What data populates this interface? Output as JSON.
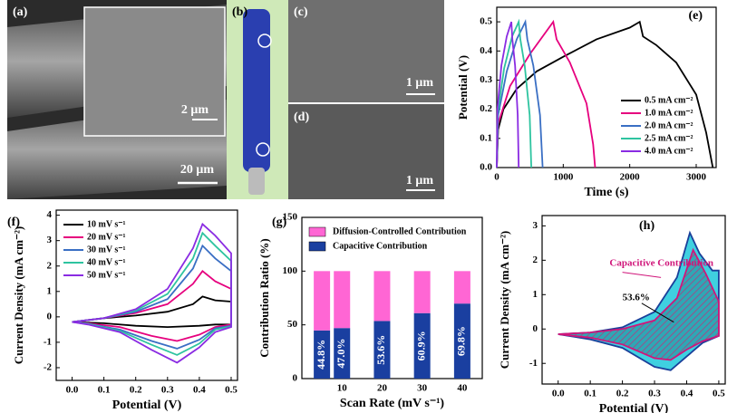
{
  "images": {
    "a": {
      "label": "(a)",
      "scale": "20 μm",
      "inset_scale": "2 μm"
    },
    "b": {
      "label": "(b)"
    },
    "c": {
      "label": "(c)",
      "scale": "1 μm"
    },
    "d": {
      "label": "(d)",
      "scale": "1 μm"
    }
  },
  "chart_data": [
    {
      "type": "line",
      "panel_label": "(e)",
      "x_label": "Time (s)",
      "y_label": "Potential (V)",
      "xlim": [
        0,
        3300
      ],
      "xticks": [
        0,
        1000,
        2000,
        3000
      ],
      "ylim": [
        0,
        0.55
      ],
      "yticks": [
        {
          "value": 0,
          "label": "0.0"
        },
        0.1,
        0.2,
        0.3,
        0.4,
        0.5
      ],
      "legend": "lower right",
      "series": [
        {
          "name": "0.5 mA cm⁻²",
          "color": "#000000",
          "x": [
            0,
            20,
            100,
            300,
            600,
            1000,
            1500,
            2000,
            2150,
            2200,
            2400,
            2700,
            3000,
            3150,
            3250
          ],
          "values": [
            0,
            0.13,
            0.2,
            0.27,
            0.33,
            0.38,
            0.44,
            0.48,
            0.5,
            0.45,
            0.42,
            0.36,
            0.25,
            0.12,
            0
          ]
        },
        {
          "name": "1.0 mA cm⁻²",
          "color": "#e6007e",
          "x": [
            0,
            20,
            200,
            500,
            850,
            900,
            1100,
            1350,
            1450,
            1480
          ],
          "values": [
            0,
            0.15,
            0.28,
            0.39,
            0.5,
            0.44,
            0.36,
            0.22,
            0.08,
            0
          ]
        },
        {
          "name": "2.0 mA cm⁻²",
          "color": "#3a6fc4",
          "x": [
            0,
            20,
            150,
            300,
            430,
            460,
            550,
            650,
            690
          ],
          "values": [
            0,
            0.18,
            0.33,
            0.44,
            0.5,
            0.44,
            0.35,
            0.18,
            0
          ]
        },
        {
          "name": "2.5 mA cm⁻²",
          "color": "#2ec4a0",
          "x": [
            0,
            15,
            110,
            230,
            330,
            355,
            420,
            495,
            520
          ],
          "values": [
            0,
            0.19,
            0.34,
            0.45,
            0.5,
            0.44,
            0.35,
            0.18,
            0
          ]
        },
        {
          "name": "4.0 mA cm⁻²",
          "color": "#8a2be2",
          "x": [
            0,
            10,
            70,
            150,
            220,
            235,
            275,
            315,
            330
          ],
          "values": [
            0,
            0.2,
            0.35,
            0.45,
            0.5,
            0.44,
            0.35,
            0.18,
            0
          ]
        }
      ]
    },
    {
      "type": "line",
      "panel_label": "(f)",
      "x_label": "Potential (V)",
      "y_label": "Current Density (mA cm⁻²)",
      "xlim": [
        -0.05,
        0.52
      ],
      "xticks": [
        {
          "value": 0,
          "label": "0.0"
        },
        0.1,
        0.2,
        0.3,
        0.4,
        0.5
      ],
      "ylim": [
        -2.5,
        4.2
      ],
      "yticks": [
        -2,
        -1,
        0,
        1,
        2,
        3,
        4
      ],
      "legend": "upper left",
      "series": [
        {
          "name": "10 mV s⁻¹",
          "color": "#000000",
          "x": [
            0,
            0.1,
            0.2,
            0.3,
            0.38,
            0.41,
            0.45,
            0.5,
            0.5,
            0.45,
            0.4,
            0.3,
            0.2,
            0.1,
            0
          ],
          "values": [
            -0.2,
            -0.05,
            0.05,
            0.2,
            0.5,
            0.8,
            0.65,
            0.6,
            -0.3,
            -0.3,
            -0.35,
            -0.4,
            -0.35,
            -0.25,
            -0.2
          ]
        },
        {
          "name": "20 mV s⁻¹",
          "color": "#e6007e",
          "x": [
            0,
            0.1,
            0.2,
            0.3,
            0.38,
            0.41,
            0.45,
            0.5,
            0.5,
            0.45,
            0.4,
            0.33,
            0.25,
            0.15,
            0.05,
            0
          ],
          "values": [
            -0.2,
            -0.05,
            0.15,
            0.5,
            1.3,
            1.8,
            1.4,
            1.1,
            -0.3,
            -0.4,
            -0.7,
            -0.95,
            -0.75,
            -0.4,
            -0.25,
            -0.2
          ]
        },
        {
          "name": "30 mV s⁻¹",
          "color": "#3a6fc4",
          "x": [
            0,
            0.1,
            0.2,
            0.3,
            0.38,
            0.41,
            0.45,
            0.5,
            0.5,
            0.45,
            0.4,
            0.33,
            0.25,
            0.15,
            0.05,
            0
          ],
          "values": [
            -0.2,
            -0.05,
            0.2,
            0.7,
            1.9,
            2.8,
            2.3,
            1.8,
            -0.35,
            -0.45,
            -0.9,
            -1.25,
            -0.95,
            -0.5,
            -0.27,
            -0.2
          ]
        },
        {
          "name": "40 mV s⁻¹",
          "color": "#2ec4a0",
          "x": [
            0,
            0.1,
            0.2,
            0.3,
            0.38,
            0.41,
            0.45,
            0.5,
            0.5,
            0.45,
            0.4,
            0.33,
            0.25,
            0.15,
            0.05,
            0
          ],
          "values": [
            -0.2,
            -0.05,
            0.25,
            0.9,
            2.3,
            3.3,
            2.8,
            2.2,
            -0.38,
            -0.5,
            -1.05,
            -1.5,
            -1.1,
            -0.55,
            -0.28,
            -0.2
          ]
        },
        {
          "name": "50 mV s⁻¹",
          "color": "#8a2be2",
          "x": [
            0,
            0.1,
            0.2,
            0.3,
            0.38,
            0.41,
            0.45,
            0.5,
            0.5,
            0.45,
            0.4,
            0.33,
            0.25,
            0.15,
            0.05,
            0
          ],
          "values": [
            -0.2,
            -0.05,
            0.3,
            1.1,
            2.7,
            3.65,
            3.2,
            2.5,
            -0.4,
            -0.6,
            -1.2,
            -1.8,
            -1.3,
            -0.6,
            -0.3,
            -0.2
          ]
        }
      ]
    },
    {
      "type": "bar",
      "panel_label": "(g)",
      "x_label": "Scan Rate (mV s⁻¹)",
      "y_label": "Contribution Ratio (%)",
      "xlim": [
        0,
        45
      ],
      "xticks": [
        10,
        20,
        30,
        40
      ],
      "x": [
        5,
        10,
        20,
        30,
        40
      ],
      "ylim": [
        0,
        150
      ],
      "yticks": [
        0,
        50,
        100,
        150
      ],
      "legend": "upper left",
      "stacked": true,
      "series": [
        {
          "name": "Capacitive Contribution",
          "color": "#1a3fa0",
          "values": [
            44.8,
            47.0,
            53.6,
            60.9,
            69.8
          ],
          "value_labels": [
            "44.8%",
            "47.0%",
            "53.6%",
            "60.9%",
            "69.8%"
          ]
        },
        {
          "name": "Diffusion-Controlled Contribution",
          "color": "#ff66d4",
          "values": [
            55.2,
            53.0,
            46.4,
            39.1,
            30.2
          ]
        }
      ]
    },
    {
      "type": "line",
      "panel_label": "(h)",
      "x_label": "Potential (V)",
      "y_label": "Current Density (mA cm⁻²)",
      "xlim": [
        -0.05,
        0.52
      ],
      "xticks": [
        {
          "value": 0,
          "label": "0.0"
        },
        0.1,
        0.2,
        0.3,
        0.4,
        0.5
      ],
      "ylim": [
        -1.6,
        3.3
      ],
      "yticks": [
        -1,
        0,
        1,
        2,
        3
      ],
      "annotations": [
        "Capacitive Contribution",
        "53.6%"
      ],
      "series": [
        {
          "color": "#1a3f9a",
          "fill": "#3fd0e0",
          "x": [
            0,
            0.1,
            0.2,
            0.3,
            0.37,
            0.41,
            0.44,
            0.48,
            0.5,
            0.5,
            0.45,
            0.4,
            0.35,
            0.3,
            0.2,
            0.1,
            0
          ],
          "values": [
            -0.15,
            -0.1,
            0.05,
            0.5,
            1.5,
            2.8,
            2.2,
            1.7,
            1.7,
            -0.2,
            -0.4,
            -0.8,
            -1.2,
            -1.1,
            -0.55,
            -0.3,
            -0.15
          ]
        },
        {
          "color": "#d0157a",
          "hatch": true,
          "x": [
            0,
            0.1,
            0.2,
            0.3,
            0.37,
            0.42,
            0.46,
            0.5,
            0.5,
            0.45,
            0.4,
            0.35,
            0.3,
            0.2,
            0.1,
            0
          ],
          "values": [
            -0.15,
            -0.1,
            0,
            0.25,
            0.9,
            2.3,
            1.6,
            0.8,
            -0.2,
            -0.35,
            -0.6,
            -0.9,
            -0.85,
            -0.45,
            -0.25,
            -0.15
          ]
        }
      ]
    }
  ]
}
